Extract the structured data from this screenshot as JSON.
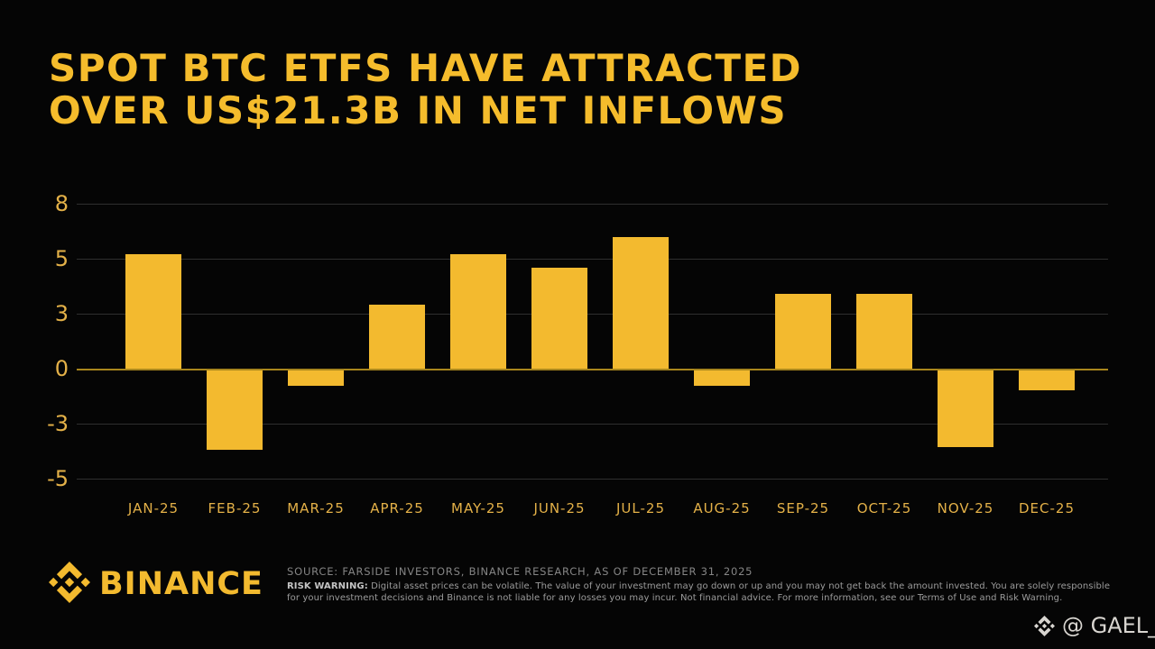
{
  "page": {
    "background": "#050505"
  },
  "title": {
    "line1": "SPOT BTC ETFS HAVE ATTRACTED",
    "line2": "OVER US$21.3B IN NET INFLOWS",
    "color": "#F5BC2C"
  },
  "chart_data": {
    "type": "bar",
    "title": "SPOT BTC ETFS HAVE ATTRACTED OVER US$21.3B IN NET INFLOWS",
    "categories": [
      "JAN-25",
      "FEB-25",
      "MAR-25",
      "APR-25",
      "MAY-25",
      "JUN-25",
      "JUL-25",
      "AUG-25",
      "SEP-25",
      "OCT-25",
      "NOV-25",
      "DEC-25"
    ],
    "values": [
      5.2,
      -3.6,
      -0.7,
      2.9,
      5.2,
      4.6,
      6.0,
      -0.7,
      3.4,
      3.4,
      -3.5,
      -0.9
    ],
    "xlabel": "",
    "ylabel": "",
    "ylim": [
      -5,
      7.5
    ],
    "yticks": [
      {
        "label": "8",
        "value": 7.5
      },
      {
        "label": "5",
        "value": 5
      },
      {
        "label": "3",
        "value": 2.5
      },
      {
        "label": "0",
        "value": 0
      },
      {
        "label": "-3",
        "value": -2.5
      },
      {
        "label": "-5",
        "value": -5
      }
    ],
    "grid": true,
    "legend": false,
    "bar_color": "#F3BA2F",
    "grid_color": "#2F2F2F",
    "zero_line_color": "#A8861D",
    "axis_label_color": "#E4B148"
  },
  "footer": {
    "brand": "BINANCE",
    "brand_color": "#F3BA2F",
    "source": "SOURCE: FARSIDE INVESTORS, BINANCE RESEARCH, AS OF DECEMBER 31, 2025",
    "risk_label": "RISK WARNING:",
    "risk_line1": "Digital asset prices can be volatile. The value of your investment may go down or up and you may not get back the amount invested. You are solely responsible",
    "risk_line2": "for your investment decisions and Binance is not liable for any losses you may incur. Not financial advice. For more information, see our Terms of Use and Risk Warning."
  },
  "watermark": {
    "handle": "@ GAEL_"
  }
}
